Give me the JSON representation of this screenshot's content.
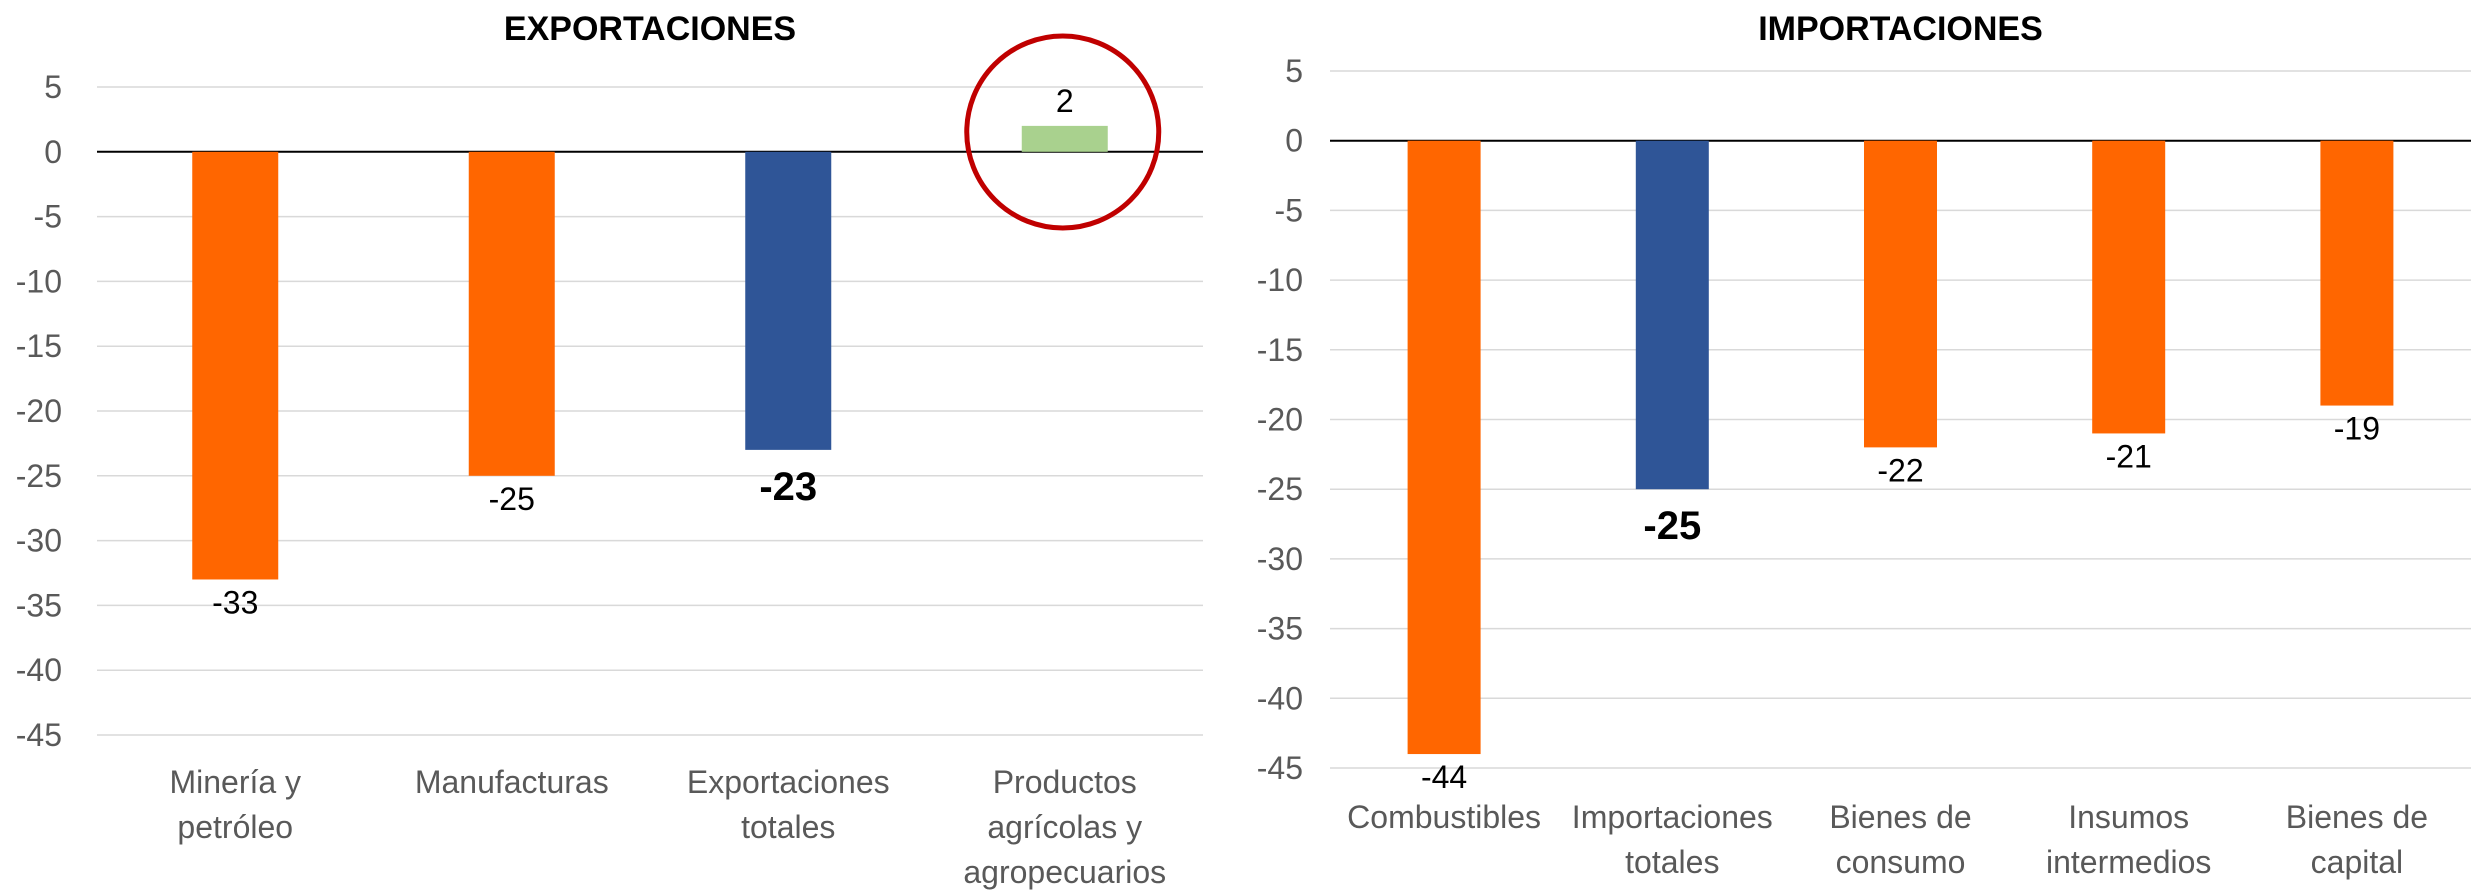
{
  "chart_data": [
    {
      "type": "bar",
      "title": "EXPORTACIONES",
      "categories": [
        [
          "Minería y",
          "petróleo"
        ],
        [
          "Manufacturas"
        ],
        [
          "Exportaciones",
          "totales"
        ],
        [
          "Productos",
          "agrícolas y",
          "agropecuarios"
        ]
      ],
      "values": [
        -33,
        -25,
        -23,
        2
      ],
      "colors": [
        "#ff6600",
        "#ff6600",
        "#2f5597",
        "#a9d18e"
      ],
      "bold_labels": [
        false,
        false,
        true,
        false
      ],
      "ylim": [
        -45,
        5
      ],
      "yticks": [
        5,
        0,
        -5,
        -10,
        -15,
        -20,
        -25,
        -30,
        -35,
        -40,
        -45
      ],
      "grid": true,
      "annotation": {
        "type": "circle",
        "target_index": 3,
        "color": "#c00000"
      }
    },
    {
      "type": "bar",
      "title": "IMPORTACIONES",
      "categories": [
        [
          "Combustibles"
        ],
        [
          "Importaciones",
          "totales"
        ],
        [
          "Bienes de",
          "consumo"
        ],
        [
          "Insumos",
          "intermedios"
        ],
        [
          "Bienes de",
          "capital"
        ]
      ],
      "values": [
        -44,
        -25,
        -22,
        -21,
        -19
      ],
      "colors": [
        "#ff6600",
        "#2f5597",
        "#ff6600",
        "#ff6600",
        "#ff6600"
      ],
      "bold_labels": [
        false,
        true,
        false,
        false,
        false
      ],
      "ylim": [
        -45,
        5
      ],
      "yticks": [
        5,
        0,
        -5,
        -10,
        -15,
        -20,
        -25,
        -30,
        -35,
        -40,
        -45
      ],
      "grid": true
    }
  ]
}
